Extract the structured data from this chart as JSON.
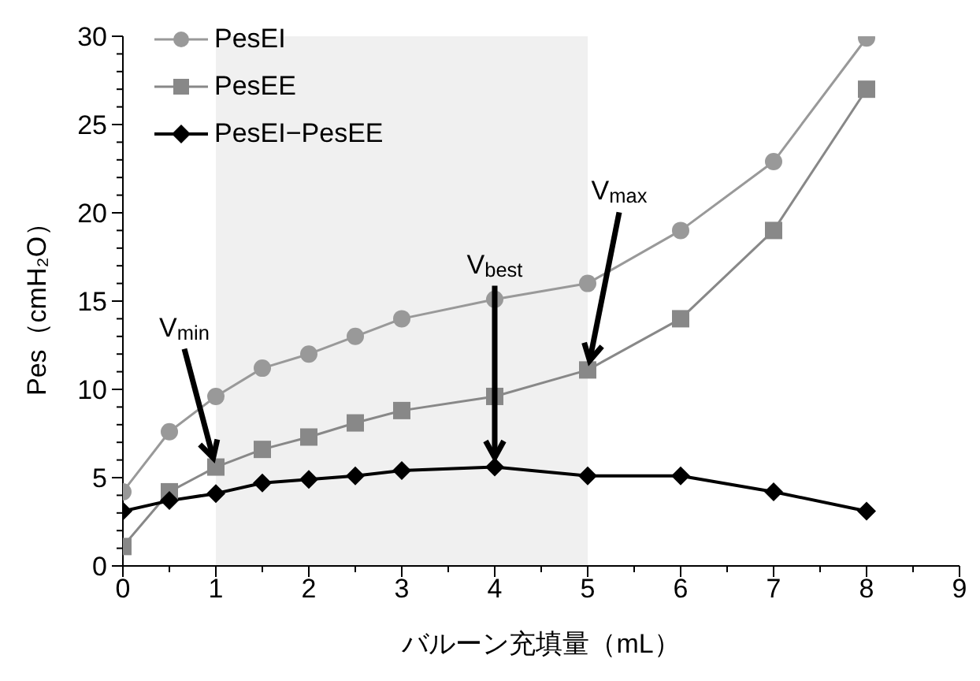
{
  "chart_data": {
    "type": "line",
    "xlabel": "バルーン充填量（mL）",
    "ylabel": "Pes（cmH₂O）",
    "x": [
      0,
      0.5,
      1,
      1.5,
      2,
      2.5,
      3,
      4,
      5,
      6,
      7,
      8
    ],
    "series": [
      {
        "name": "PesEI",
        "color": "#999999",
        "marker": "circle",
        "values": [
          4.2,
          7.6,
          9.6,
          11.2,
          12,
          13,
          14,
          15.1,
          16,
          19,
          22.9,
          29.9
        ]
      },
      {
        "name": "PesEE",
        "color": "#888888",
        "marker": "square",
        "values": [
          1.1,
          4.2,
          5.6,
          6.6,
          7.3,
          8.1,
          8.8,
          9.6,
          11.1,
          14,
          19,
          27
        ]
      },
      {
        "name": "PesEI−PesEE",
        "color": "#000000",
        "marker": "diamond",
        "values": [
          3.1,
          3.7,
          4.1,
          4.7,
          4.9,
          5.1,
          5.4,
          5.6,
          5.1,
          5.1,
          4.2,
          3.1
        ]
      }
    ],
    "xlim": [
      0,
      9
    ],
    "xticks": [
      0,
      {
        "value": 0.5,
        "label": null
      },
      1,
      {
        "value": 1.5,
        "label": null
      },
      2,
      {
        "value": 2.5,
        "label": null
      },
      3,
      {
        "value": 3.5,
        "label": null
      },
      4,
      {
        "value": 4.5,
        "label": null
      },
      5,
      {
        "value": 5.5,
        "label": null
      },
      6,
      {
        "value": 6.5,
        "label": null
      },
      7,
      {
        "value": 7.5,
        "label": null
      },
      8,
      {
        "value": 8.5,
        "label": null
      },
      9
    ],
    "ylim": [
      0,
      30
    ],
    "yticks": [
      0,
      {
        "value": 1,
        "label": null
      },
      {
        "value": 2,
        "label": null
      },
      {
        "value": 3,
        "label": null
      },
      {
        "value": 4,
        "label": null
      },
      5,
      {
        "value": 6,
        "label": null
      },
      {
        "value": 7,
        "label": null
      },
      {
        "value": 8,
        "label": null
      },
      {
        "value": 9,
        "label": null
      },
      10,
      {
        "value": 11,
        "label": null
      },
      {
        "value": 12,
        "label": null
      },
      {
        "value": 13,
        "label": null
      },
      {
        "value": 14,
        "label": null
      },
      15,
      {
        "value": 16,
        "label": null
      },
      {
        "value": 17,
        "label": null
      },
      {
        "value": 18,
        "label": null
      },
      {
        "value": 19,
        "label": null
      },
      20,
      {
        "value": 21,
        "label": null
      },
      {
        "value": 22,
        "label": null
      },
      {
        "value": 23,
        "label": null
      },
      {
        "value": 24,
        "label": null
      },
      25,
      {
        "value": 26,
        "label": null
      },
      {
        "value": 27,
        "label": null
      },
      {
        "value": 28,
        "label": null
      },
      {
        "value": 29,
        "label": null
      },
      30
    ],
    "bands": [
      {
        "axis": "x",
        "from": 1,
        "to": 5,
        "color": "#f0f0f0"
      }
    ],
    "annotations": [
      {
        "text": "V$_{min}$",
        "x": 1,
        "y": 5.6
      },
      {
        "text": "V$_{best}$",
        "x": 4,
        "y": 5.6
      },
      {
        "text": "V$_{max}$",
        "x": 5,
        "y": 11.1
      }
    ],
    "grid": false,
    "legend": "top left"
  }
}
